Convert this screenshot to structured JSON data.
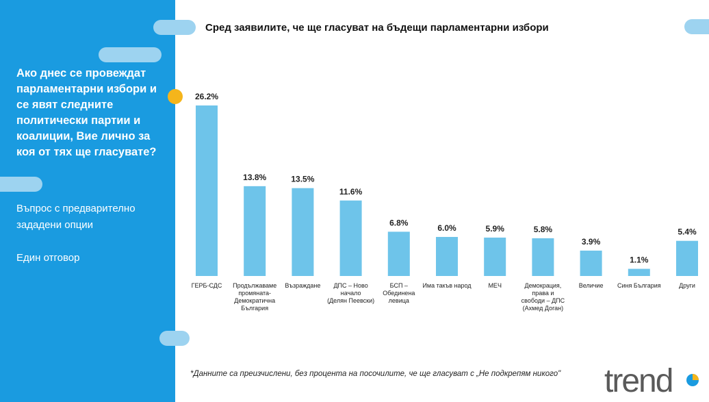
{
  "sidebar": {
    "question": "Ако днес се провеждат парламентарни избори и се явят следните политически партии и коалиции, Вие лично за коя от тях ще гласувате?",
    "note1": "Въпрос с предварително зададени опции",
    "note2": "Един отговор"
  },
  "colors": {
    "sidebar": "#1a9be0",
    "bar": "#6ec4ea",
    "accent_dot": "#f5b51b",
    "pill": "#9dd3f0"
  },
  "chart_data": {
    "type": "bar",
    "title": "Сред заявилите, че ще гласуват на бъдещи парламентарни избори",
    "categories": [
      [
        "ГЕРБ-СДС"
      ],
      [
        "Продължаваме",
        "промяната-",
        "Демократична",
        "България"
      ],
      [
        "Възраждане"
      ],
      [
        "ДПС – Ново",
        "начало",
        "(Делян Пеевски)"
      ],
      [
        "БСП –",
        "Обединена",
        "левица"
      ],
      [
        "Има такъв народ"
      ],
      [
        "МЕЧ"
      ],
      [
        "Демокрация,",
        "права и",
        "свободи – ДПС",
        "(Ахмед Доган)"
      ],
      [
        "Величие"
      ],
      [
        "Синя България"
      ],
      [
        "Други"
      ]
    ],
    "values": [
      26.2,
      13.8,
      13.5,
      11.6,
      6.8,
      6.0,
      5.9,
      5.8,
      3.9,
      1.1,
      5.4
    ],
    "value_labels": [
      "26.2%",
      "13.8%",
      "13.5%",
      "11.6%",
      "6.8%",
      "6.0%",
      "5.9%",
      "5.8%",
      "3.9%",
      "1.1%",
      "5.4%"
    ],
    "ylim": [
      0,
      26.2
    ],
    "grid": false
  },
  "footnote": "*Данните са преизчислени, без процента на посочилите, че ще гласуват с „Не подкрепям никого\"",
  "logo_text": "trend"
}
